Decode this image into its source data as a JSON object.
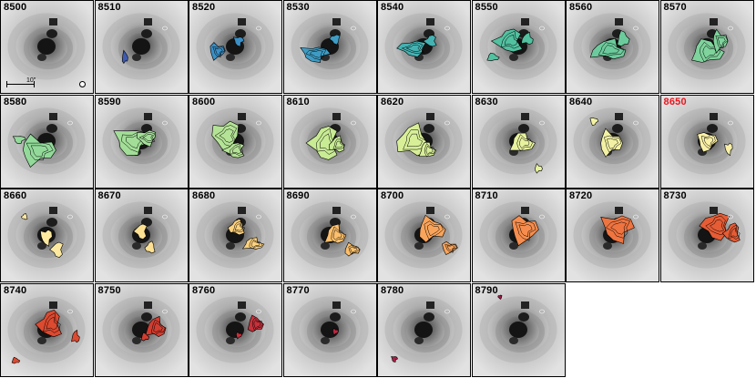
{
  "scale_bar_label": "10″",
  "highlight_color": "#e8171f",
  "panels": [
    {
      "label": "8500",
      "color": null
    },
    {
      "label": "8510",
      "color": "#3f5bb0"
    },
    {
      "label": "8520",
      "color": "#3a8fc6"
    },
    {
      "label": "8530",
      "color": "#3e9cc4"
    },
    {
      "label": "8540",
      "color": "#45b2b2"
    },
    {
      "label": "8550",
      "color": "#52c1a0"
    },
    {
      "label": "8560",
      "color": "#6ccb9c"
    },
    {
      "label": "8570",
      "color": "#7fd39c"
    },
    {
      "label": "8580",
      "color": "#93da9a"
    },
    {
      "label": "8590",
      "color": "#a3de98"
    },
    {
      "label": "8600",
      "color": "#b4e396"
    },
    {
      "label": "8610",
      "color": "#c8eb94"
    },
    {
      "label": "8620",
      "color": "#d8ef98"
    },
    {
      "label": "8630",
      "color": "#e8f29e"
    },
    {
      "label": "8640",
      "color": "#f3f2a4"
    },
    {
      "label": "8650",
      "color": "#faf0a6",
      "highlight": true
    },
    {
      "label": "8660",
      "color": "#fde9a0"
    },
    {
      "label": "8670",
      "color": "#fde092"
    },
    {
      "label": "8680",
      "color": "#fdd27e"
    },
    {
      "label": "8690",
      "color": "#fcbf6c"
    },
    {
      "label": "8700",
      "color": "#f9a45b"
    },
    {
      "label": "8710",
      "color": "#f68d4e"
    },
    {
      "label": "8720",
      "color": "#ef7440"
    },
    {
      "label": "8730",
      "color": "#e65c35"
    },
    {
      "label": "8740",
      "color": "#dc4a30"
    },
    {
      "label": "8750",
      "color": "#d23d30"
    },
    {
      "label": "8760",
      "color": "#c8303a"
    },
    {
      "label": "8770",
      "color": "#b82840"
    },
    {
      "label": "8780",
      "color": "#a81f45"
    },
    {
      "label": "8790",
      "color": "#9a1a48"
    }
  ]
}
